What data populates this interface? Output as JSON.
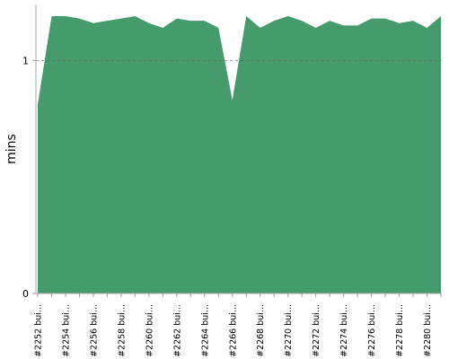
{
  "chart_data": {
    "type": "area",
    "y_label": "mins",
    "color": "#459b6b",
    "categories": [
      "#2252 bui...",
      null,
      "#2254 bui...",
      null,
      "#2256 bui...",
      null,
      "#2258 bui...",
      null,
      "#2260 bui...",
      null,
      "#2262 bui...",
      null,
      "#2264 bui...",
      null,
      "#2266 bui...",
      null,
      "#2268 bui...",
      null,
      "#2270 bui...",
      null,
      "#2272 bui...",
      null,
      "#2274 bui...",
      null,
      "#2276 bui...",
      null,
      "#2278 bui...",
      null,
      "#2280 bui...",
      null
    ],
    "values": [
      0.81,
      1.19,
      1.19,
      1.18,
      1.16,
      1.17,
      1.18,
      1.19,
      1.16,
      1.14,
      1.18,
      1.17,
      1.17,
      1.14,
      0.83,
      1.19,
      1.14,
      1.17,
      1.19,
      1.17,
      1.14,
      1.17,
      1.15,
      1.15,
      1.18,
      1.18,
      1.16,
      1.17,
      1.14,
      1.19
    ],
    "ylim": [
      0,
      1.24
    ],
    "yticks": [
      0,
      1
    ],
    "grid": true
  }
}
